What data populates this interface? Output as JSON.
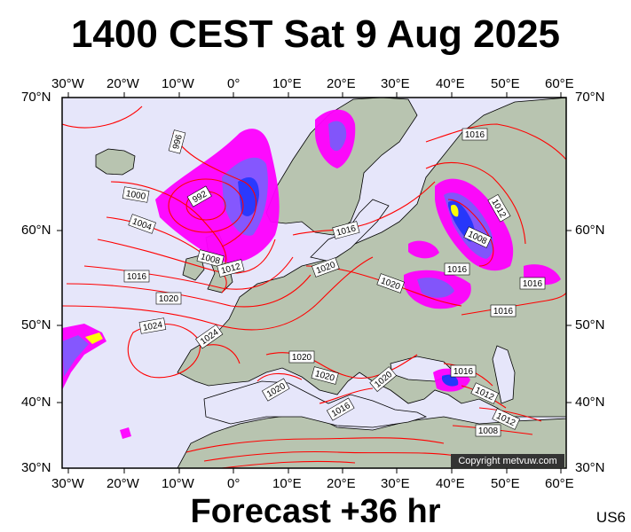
{
  "title": "1400 CEST Sat 9 Aug 2025",
  "subtitle": "Forecast +36 hr",
  "region_code": "US6",
  "copyright": "Copyright metvuw.com",
  "colors": {
    "ocean": "#e6e6fa",
    "land": "#b8c4b0",
    "isobar": "#ff0000",
    "precip_light": "#ff00ff",
    "precip_mid": "#8050ff",
    "precip_heavy": "#2030ff",
    "precip_extreme": "#ffff00"
  },
  "axes": {
    "lon_top": [
      "30°W",
      "20°W",
      "10°W",
      "0°",
      "10°E",
      "20°E",
      "30°E",
      "40°E",
      "50°E",
      "60°E"
    ],
    "lon_bottom": [
      "30°W",
      "20°W",
      "10°W",
      "0°",
      "10°E",
      "20°E",
      "30°E",
      "40°E",
      "50°E",
      "60°E"
    ],
    "lat_left": [
      "70°N",
      "60°N",
      "50°N",
      "40°N",
      "30°N"
    ],
    "lat_right": [
      "70°N",
      "60°N",
      "50°N",
      "40°N",
      "30°N"
    ]
  },
  "isobar_labels": [
    "996",
    "992",
    "1000",
    "1004",
    "1008",
    "1012",
    "1016",
    "1020",
    "1024",
    "1024",
    "1020",
    "1016",
    "1016",
    "1020",
    "1016",
    "1020",
    "1020",
    "1020",
    "1020",
    "1016",
    "1016",
    "1012",
    "1008",
    "1016",
    "1016",
    "1012",
    "1012",
    "1008"
  ]
}
